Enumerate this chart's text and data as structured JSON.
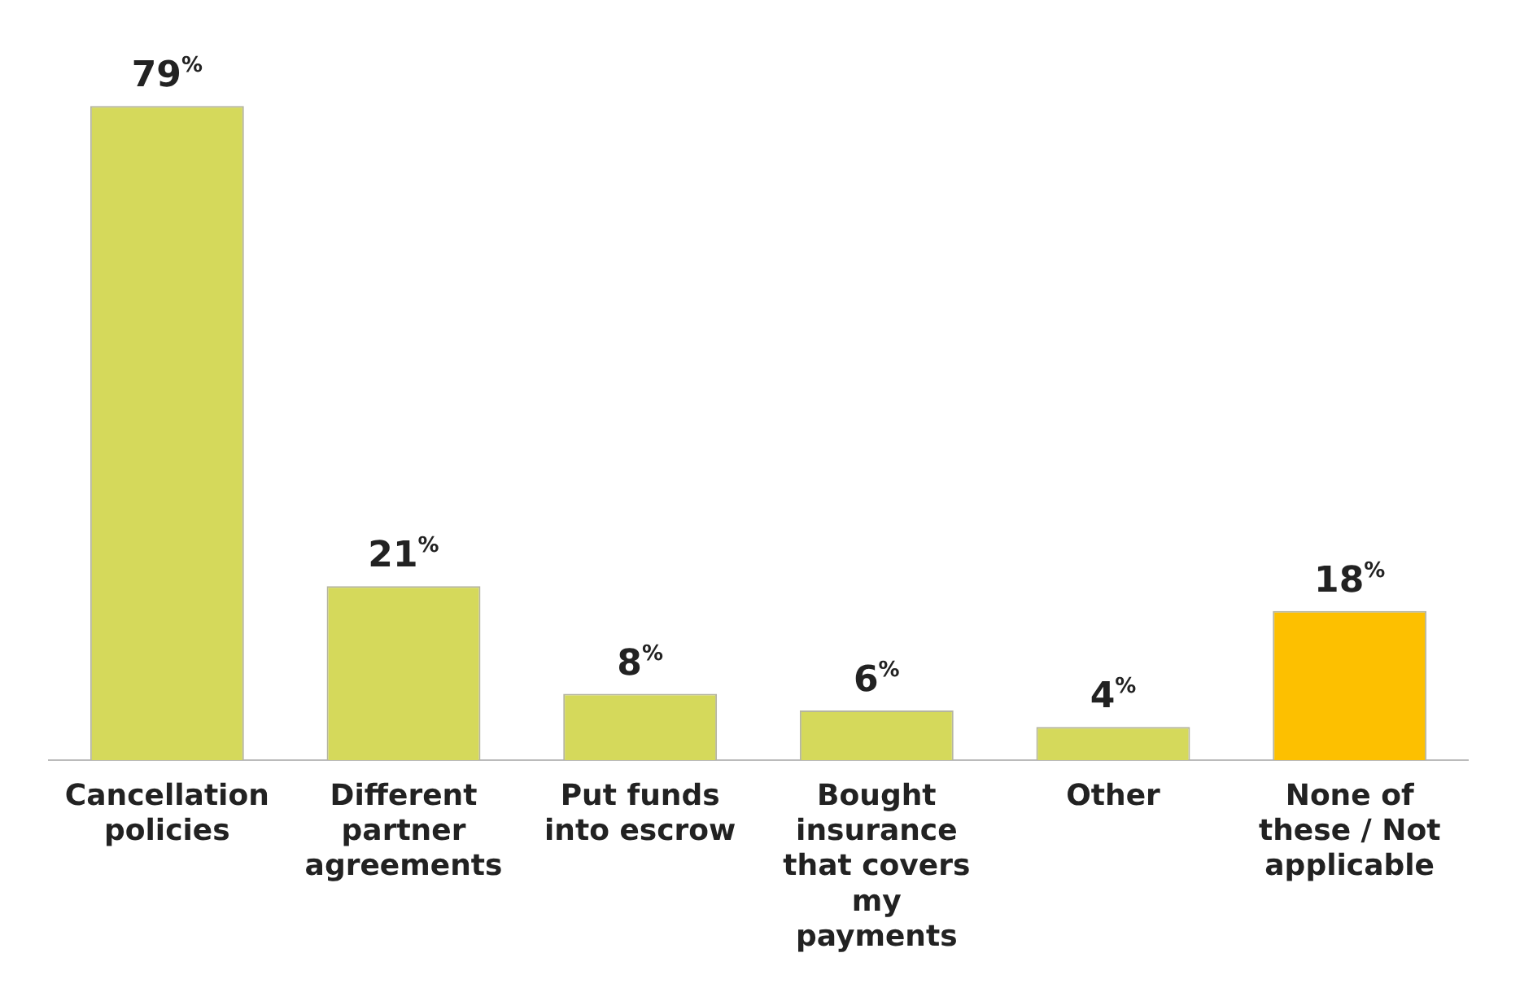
{
  "chart_data": {
    "type": "bar",
    "categories": [
      "Cancellation policies",
      "Different partner agreements",
      "Put funds into escrow",
      "Bought insurance that covers my payments",
      "Other",
      "None of these / Not applicable"
    ],
    "values": [
      79,
      21,
      8,
      6,
      4,
      18
    ],
    "colors": [
      "#d5d95b",
      "#d5d95b",
      "#d5d95b",
      "#d5d95b",
      "#d5d95b",
      "#fdc000"
    ],
    "value_labels": [
      "79%",
      "21%",
      "8%",
      "6%",
      "4%",
      "18%"
    ],
    "grid": false,
    "legend": false
  }
}
